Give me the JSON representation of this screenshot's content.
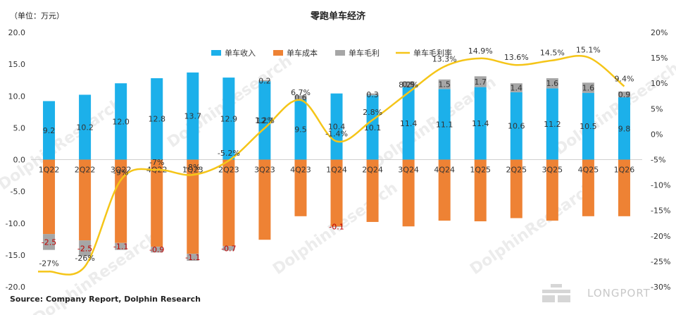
{
  "header": {
    "unit": "（单位：万元）",
    "title": "零跑单车经济",
    "source": "Source: Company Report, Dolphin Research",
    "brand": "LONGPORT",
    "watermark": "DolphinResearch"
  },
  "colors": {
    "revenue": "#1cb0ea",
    "cost": "#ee8234",
    "profit": "#a6a6a6",
    "margin": "#f5c518",
    "negative_label": "#c00000"
  },
  "chart_data": {
    "type": "bar",
    "title": "零跑单车经济",
    "categories": [
      "1Q22",
      "2Q22",
      "3Q22",
      "4Q22",
      "1Q23",
      "2Q23",
      "3Q23",
      "4Q23",
      "1Q24",
      "2Q24",
      "3Q24",
      "4Q24",
      "1Q25",
      "2Q25",
      "3Q25",
      "4Q25",
      "1Q26"
    ],
    "left_axis": {
      "min": -20,
      "max": 20,
      "ticks": [
        "20.0",
        "15.0",
        "10.0",
        "5.0",
        "0.0",
        "-5.0",
        "-10.0",
        "-15.0",
        "-20.0"
      ]
    },
    "right_axis": {
      "min": -30,
      "max": 20,
      "ticks": [
        "20%",
        "15%",
        "10%",
        "5%",
        "0%",
        "-5%",
        "-10%",
        "-15%",
        "-20%",
        "-25%",
        "-30%"
      ]
    },
    "series": [
      {
        "name": "单车收入",
        "type": "bar",
        "values": [
          9.2,
          10.2,
          12.0,
          12.8,
          13.7,
          12.9,
          12.3,
          9.5,
          10.4,
          10.1,
          11.4,
          11.1,
          11.4,
          10.6,
          11.2,
          10.5,
          9.8
        ],
        "labels": [
          "9.2",
          "10.2",
          "12.0",
          "12.8",
          "13.7",
          "12.9",
          "12.3",
          "9.5",
          "10.4",
          "10.1",
          "11.4",
          "11.1",
          "11.4",
          "10.6",
          "11.2",
          "10.5",
          "9.8"
        ]
      },
      {
        "name": "单车成本",
        "type": "bar",
        "values": [
          -11.7,
          -12.7,
          -13.1,
          -13.7,
          -14.8,
          -13.6,
          -12.6,
          -8.9,
          -10.5,
          -9.8,
          -10.5,
          -9.6,
          -9.7,
          -9.2,
          -9.6,
          -8.9,
          -8.9
        ]
      },
      {
        "name": "单车毛利",
        "type": "bar",
        "values": [
          -2.5,
          -2.5,
          -1.1,
          -0.9,
          -1.1,
          -0.7,
          0.2,
          0.6,
          -0.1,
          0.3,
          0.9,
          1.5,
          1.7,
          1.4,
          1.6,
          1.6,
          0.9
        ],
        "labels": [
          "-2.5",
          "-2.5",
          "-1.1",
          "-0.9",
          "-1.1",
          "-0.7",
          "0.2",
          "0.6",
          "-0.1",
          "0.3",
          "0.9",
          "1.5",
          "1.7",
          "1.4",
          "1.6",
          "1.6",
          "0.9"
        ]
      },
      {
        "name": "单车毛利率",
        "type": "line",
        "axis": "right",
        "values": [
          -27,
          -26,
          -9,
          -7,
          -8,
          -5.2,
          1.2,
          6.7,
          -1.4,
          2.8,
          8.2,
          13.3,
          14.9,
          13.6,
          14.5,
          15.1,
          9.4
        ],
        "labels": [
          "-27%",
          "-26%",
          "-9%",
          "-7%",
          "-8%",
          "-5.2%",
          "1.2%",
          "6.7%",
          "-1.4%",
          "2.8%",
          "8.2%",
          "13.3%",
          "14.9%",
          "13.6%",
          "14.5%",
          "15.1%",
          "9.4%"
        ]
      }
    ],
    "legend_position": "top-center",
    "grid": false
  }
}
